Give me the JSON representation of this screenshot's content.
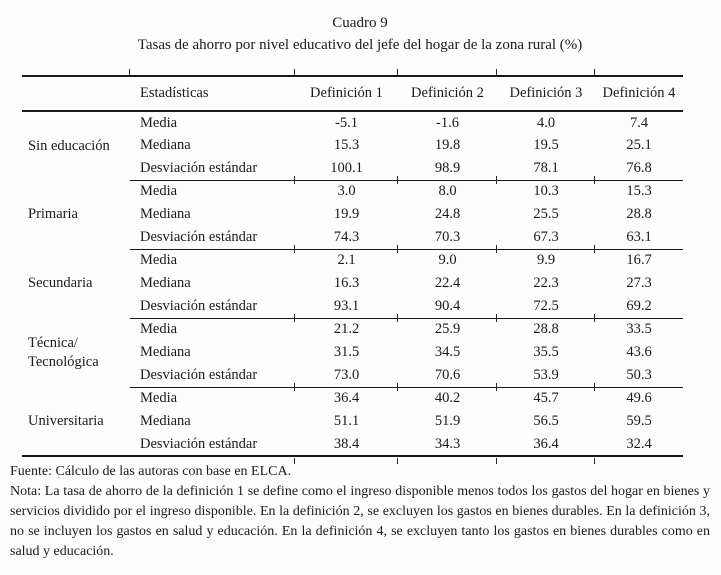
{
  "page": {
    "caption": "Cuadro 9",
    "title": "Tasas de ahorro por nivel educativo del jefe del hogar de la zona rural (%)"
  },
  "table": {
    "header": {
      "stat": "Estadísticas",
      "defs": [
        "Definición 1",
        "Definición 2",
        "Definición 3",
        "Definición 4"
      ]
    },
    "groups": [
      {
        "name": "Sin educación",
        "rows": [
          {
            "stat": "Media",
            "values": [
              "-5.1",
              "-1.6",
              "4.0",
              "7.4"
            ]
          },
          {
            "stat": "Mediana",
            "values": [
              "15.3",
              "19.8",
              "19.5",
              "25.1"
            ]
          },
          {
            "stat": "Desviación estándar",
            "values": [
              "100.1",
              "98.9",
              "78.1",
              "76.8"
            ]
          }
        ]
      },
      {
        "name": "Primaria",
        "rows": [
          {
            "stat": "Media",
            "values": [
              "3.0",
              "8.0",
              "10.3",
              "15.3"
            ]
          },
          {
            "stat": "Mediana",
            "values": [
              "19.9",
              "24.8",
              "25.5",
              "28.8"
            ]
          },
          {
            "stat": "Desviación estándar",
            "values": [
              "74.3",
              "70.3",
              "67.3",
              "63.1"
            ]
          }
        ]
      },
      {
        "name": "Secundaria",
        "rows": [
          {
            "stat": "Media",
            "values": [
              "2.1",
              "9.0",
              "9.9",
              "16.7"
            ]
          },
          {
            "stat": "Mediana",
            "values": [
              "16.3",
              "22.4",
              "22.3",
              "27.3"
            ]
          },
          {
            "stat": "Desviación estándar",
            "values": [
              "93.1",
              "90.4",
              "72.5",
              "69.2"
            ]
          }
        ]
      },
      {
        "name": "Técnica/\nTecnológica",
        "rows": [
          {
            "stat": "Media",
            "values": [
              "21.2",
              "25.9",
              "28.8",
              "33.5"
            ]
          },
          {
            "stat": "Mediana",
            "values": [
              "31.5",
              "34.5",
              "35.5",
              "43.6"
            ]
          },
          {
            "stat": "Desviación estándar",
            "values": [
              "73.0",
              "70.6",
              "53.9",
              "50.3"
            ]
          }
        ]
      },
      {
        "name": "Universitaria",
        "rows": [
          {
            "stat": "Media",
            "values": [
              "36.4",
              "40.2",
              "45.7",
              "49.6"
            ]
          },
          {
            "stat": "Mediana",
            "values": [
              "51.1",
              "51.9",
              "56.5",
              "59.5"
            ]
          },
          {
            "stat": "Desviación estándar",
            "values": [
              "38.4",
              "34.3",
              "36.4",
              "32.4"
            ]
          }
        ]
      }
    ]
  },
  "footer": {
    "fuente": "Fuente: Cálculo de las autoras con base en ELCA.",
    "nota": "Nota: La tasa de ahorro de la definición 1 se define como el ingreso disponible menos todos los gastos del hogar en bienes y servicios dividido por el ingreso disponible. En la definición 2, se excluyen los gastos en bienes durables. En la definición 3, no se incluyen los gastos en salud y educación. En la definición 4, se excluyen tanto los gastos en bienes durables como en salud y educación."
  }
}
